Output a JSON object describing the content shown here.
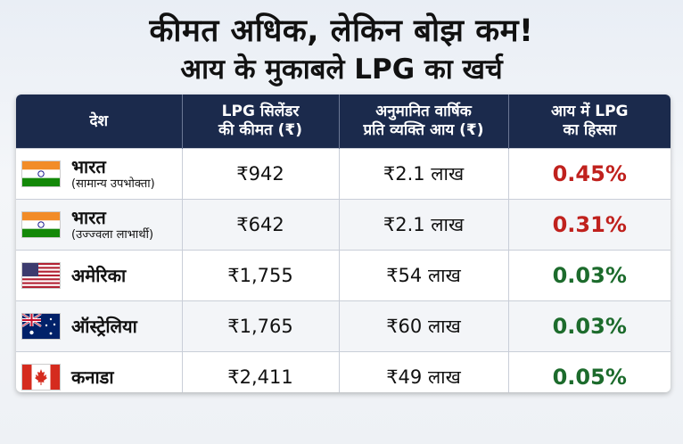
{
  "title_line1": "कीमत अधिक, लेकिन बोझ कम!",
  "title_line2": "आय के मुकाबले LPG का खर्च",
  "headers": {
    "country": "देश",
    "price_l1": "LPG सिलेंडर",
    "price_l2": "की कीमत (₹)",
    "income_l1": "अनुमानित वार्षिक",
    "income_l2": "प्रति व्यक्ति आय (₹)",
    "share_l1": "आय में LPG",
    "share_l2": "का हिस्सा"
  },
  "rows": [
    {
      "country": "भारत",
      "sub": "(सामान्य उपभोक्ता)",
      "flag": "india-flag",
      "price": "₹942",
      "income": "₹2.1 लाख",
      "share": "0.45%",
      "share_color": "#c0211d"
    },
    {
      "country": "भारत",
      "sub": "(उज्ज्वला लाभार्थी)",
      "flag": "india-flag",
      "price": "₹642",
      "income": "₹2.1 लाख",
      "share": "0.31%",
      "share_color": "#c0211d"
    },
    {
      "country": "अमेरिका",
      "sub": "",
      "flag": "usa-flag",
      "price": "₹1,755",
      "income": "₹54 लाख",
      "share": "0.03%",
      "share_color": "#1c6b2c"
    },
    {
      "country": "ऑस्ट्रेलिया",
      "sub": "",
      "flag": "australia-flag",
      "price": "₹1,765",
      "income": "₹60 लाख",
      "share": "0.03%",
      "share_color": "#1c6b2c"
    },
    {
      "country": "कनाडा",
      "sub": "",
      "flag": "canada-flag",
      "price": "₹2,411",
      "income": "₹49 लाख",
      "share": "0.05%",
      "share_color": "#1c6b2c"
    }
  ],
  "colors": {
    "header_bg": "#1b2a4c",
    "red": "#c0211d",
    "green": "#1c6b2c"
  }
}
